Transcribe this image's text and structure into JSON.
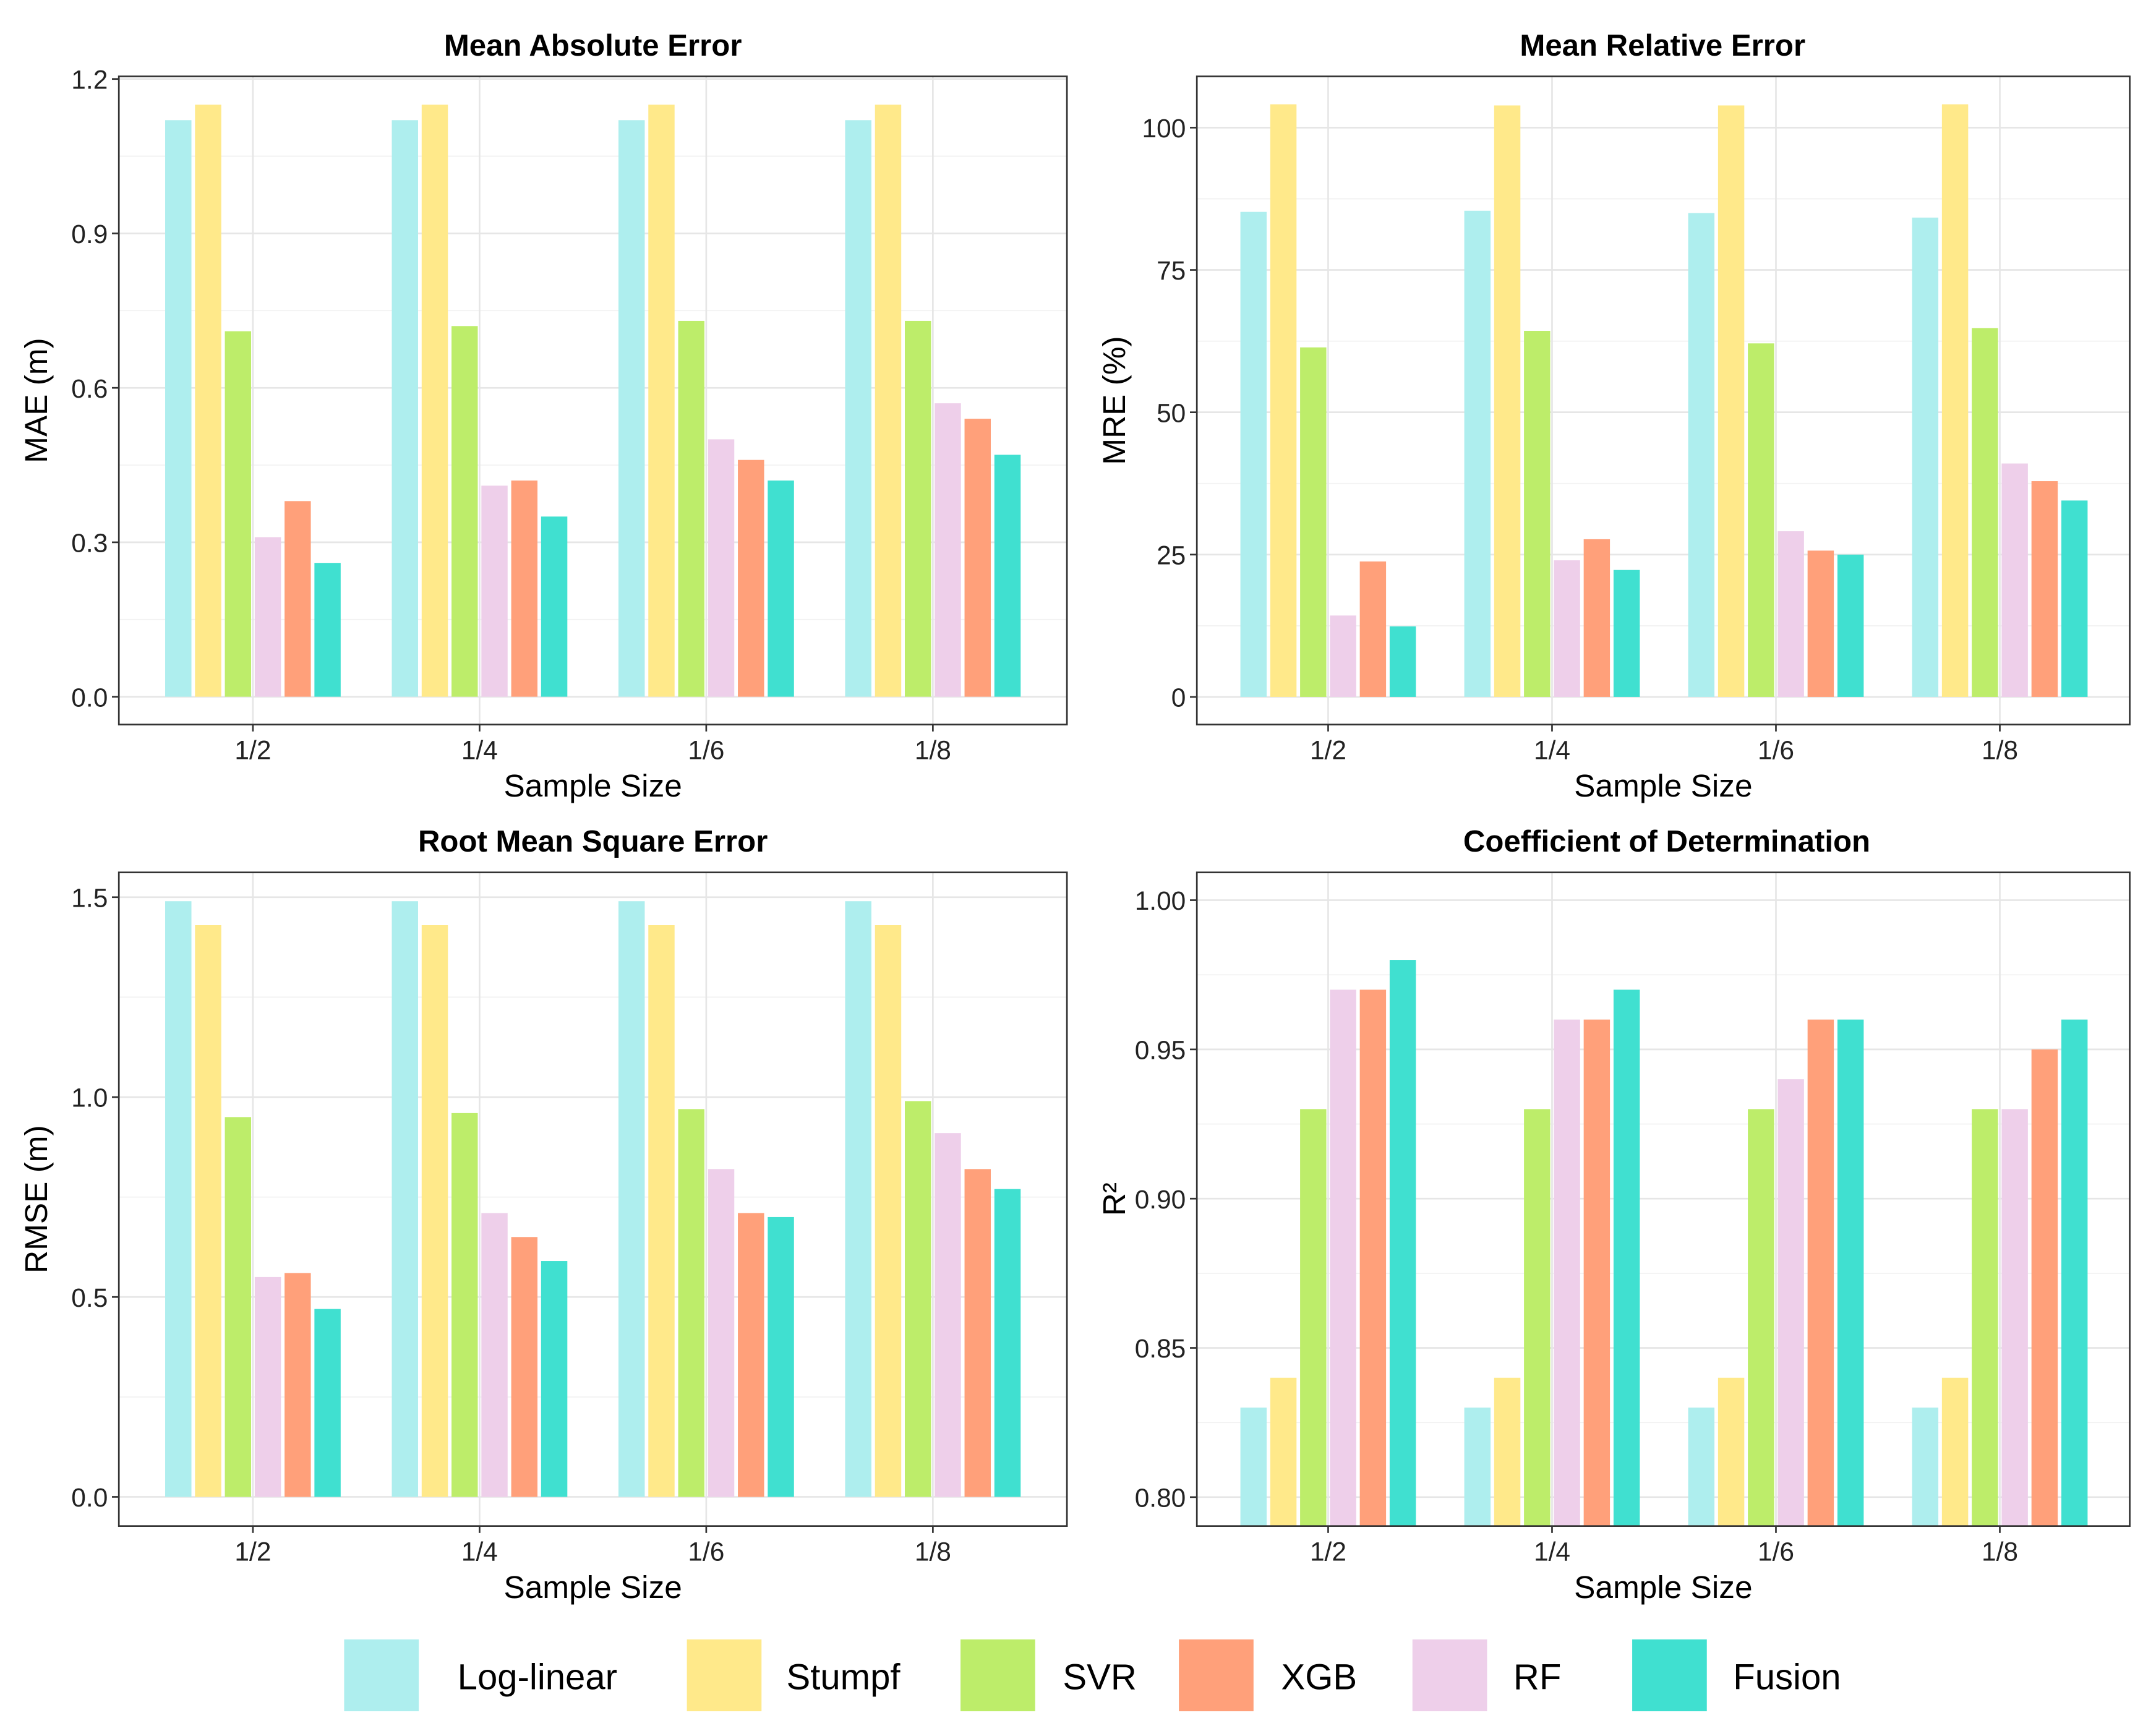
{
  "colors": {
    "Log-linear": "#aeeeee",
    "Stumpf": "#ffe98a",
    "SVR": "#bded6a",
    "XGB": "#ffa07a",
    "RF": "#eecfea",
    "Fusion": "#40e0d0"
  },
  "legend": [
    "Log-linear",
    "Stumpf",
    "SVR",
    "XGB",
    "RF",
    "Fusion"
  ],
  "chart_data": [
    {
      "type": "bar",
      "title": "Mean Absolute Error",
      "xlabel": "Sample Size",
      "ylabel": "MAE (m)",
      "categories": [
        "1/2",
        "1/4",
        "1/6",
        "1/8"
      ],
      "ylim": [
        -0.054,
        1.205
      ],
      "baseline": 0,
      "yticks": [
        0.0,
        0.3,
        0.6,
        0.9,
        1.2
      ],
      "ytick_labels": [
        "0.0",
        "0.3",
        "0.6",
        "0.9",
        "1.2"
      ],
      "series": [
        {
          "name": "Log-linear",
          "values": [
            1.12,
            1.12,
            1.12,
            1.12
          ]
        },
        {
          "name": "Stumpf",
          "values": [
            1.15,
            1.15,
            1.15,
            1.15
          ]
        },
        {
          "name": "SVR",
          "values": [
            0.71,
            0.72,
            0.73,
            0.73
          ]
        },
        {
          "name": "RF",
          "values": [
            0.31,
            0.41,
            0.5,
            0.57
          ]
        },
        {
          "name": "XGB",
          "values": [
            0.38,
            0.42,
            0.46,
            0.54
          ]
        },
        {
          "name": "Fusion",
          "values": [
            0.26,
            0.35,
            0.42,
            0.47
          ]
        }
      ]
    },
    {
      "type": "bar",
      "title": "Mean Relative Error",
      "xlabel": "Sample Size",
      "ylabel": "MRE (%)",
      "categories": [
        "1/2",
        "1/4",
        "1/6",
        "1/8"
      ],
      "ylim": [
        -4.85,
        109.0
      ],
      "baseline": 0,
      "yticks": [
        0,
        25,
        50,
        75,
        100
      ],
      "ytick_labels": [
        "0",
        "25",
        "50",
        "75",
        "100"
      ],
      "series": [
        {
          "name": "Log-linear",
          "values": [
            85.2,
            85.4,
            85.0,
            84.2
          ]
        },
        {
          "name": "Stumpf",
          "values": [
            104.1,
            103.9,
            103.9,
            104.1
          ]
        },
        {
          "name": "SVR",
          "values": [
            61.4,
            64.3,
            62.1,
            64.8
          ]
        },
        {
          "name": "RF",
          "values": [
            14.3,
            24.0,
            29.1,
            41.0
          ]
        },
        {
          "name": "XGB",
          "values": [
            23.8,
            27.7,
            25.7,
            37.9
          ]
        },
        {
          "name": "Fusion",
          "values": [
            12.4,
            22.3,
            25.0,
            34.5
          ]
        }
      ]
    },
    {
      "type": "bar",
      "title": "Root Mean Square Error",
      "xlabel": "Sample Size",
      "ylabel": "RMSE (m)",
      "categories": [
        "1/2",
        "1/4",
        "1/6",
        "1/8"
      ],
      "ylim": [
        -0.073,
        1.562
      ],
      "baseline": 0,
      "yticks": [
        0.0,
        0.5,
        1.0,
        1.5
      ],
      "ytick_labels": [
        "0.0",
        "0.5",
        "1.0",
        "1.5"
      ],
      "series": [
        {
          "name": "Log-linear",
          "values": [
            1.49,
            1.49,
            1.49,
            1.49
          ]
        },
        {
          "name": "Stumpf",
          "values": [
            1.43,
            1.43,
            1.43,
            1.43
          ]
        },
        {
          "name": "SVR",
          "values": [
            0.95,
            0.96,
            0.97,
            0.99
          ]
        },
        {
          "name": "RF",
          "values": [
            0.55,
            0.71,
            0.82,
            0.91
          ]
        },
        {
          "name": "XGB",
          "values": [
            0.56,
            0.65,
            0.71,
            0.82
          ]
        },
        {
          "name": "Fusion",
          "values": [
            0.47,
            0.59,
            0.7,
            0.77
          ]
        }
      ]
    },
    {
      "type": "bar",
      "title": "Coefficient of Determination",
      "xlabel": "Sample Size",
      "ylabel": "R²",
      "categories": [
        "1/2",
        "1/4",
        "1/6",
        "1/8"
      ],
      "ylim": [
        0.7903,
        1.0093
      ],
      "baseline": 0.7903,
      "yticks": [
        0.8,
        0.85,
        0.9,
        0.95,
        1.0
      ],
      "ytick_labels": [
        "0.80",
        "0.85",
        "0.90",
        "0.95",
        "1.00"
      ],
      "series": [
        {
          "name": "Log-linear",
          "values": [
            0.83,
            0.83,
            0.83,
            0.83
          ]
        },
        {
          "name": "Stumpf",
          "values": [
            0.84,
            0.84,
            0.84,
            0.84
          ]
        },
        {
          "name": "SVR",
          "values": [
            0.93,
            0.93,
            0.93,
            0.93
          ]
        },
        {
          "name": "RF",
          "values": [
            0.97,
            0.96,
            0.94,
            0.93
          ]
        },
        {
          "name": "XGB",
          "values": [
            0.97,
            0.96,
            0.96,
            0.95
          ]
        },
        {
          "name": "Fusion",
          "values": [
            0.98,
            0.97,
            0.96,
            0.96
          ]
        }
      ]
    }
  ]
}
